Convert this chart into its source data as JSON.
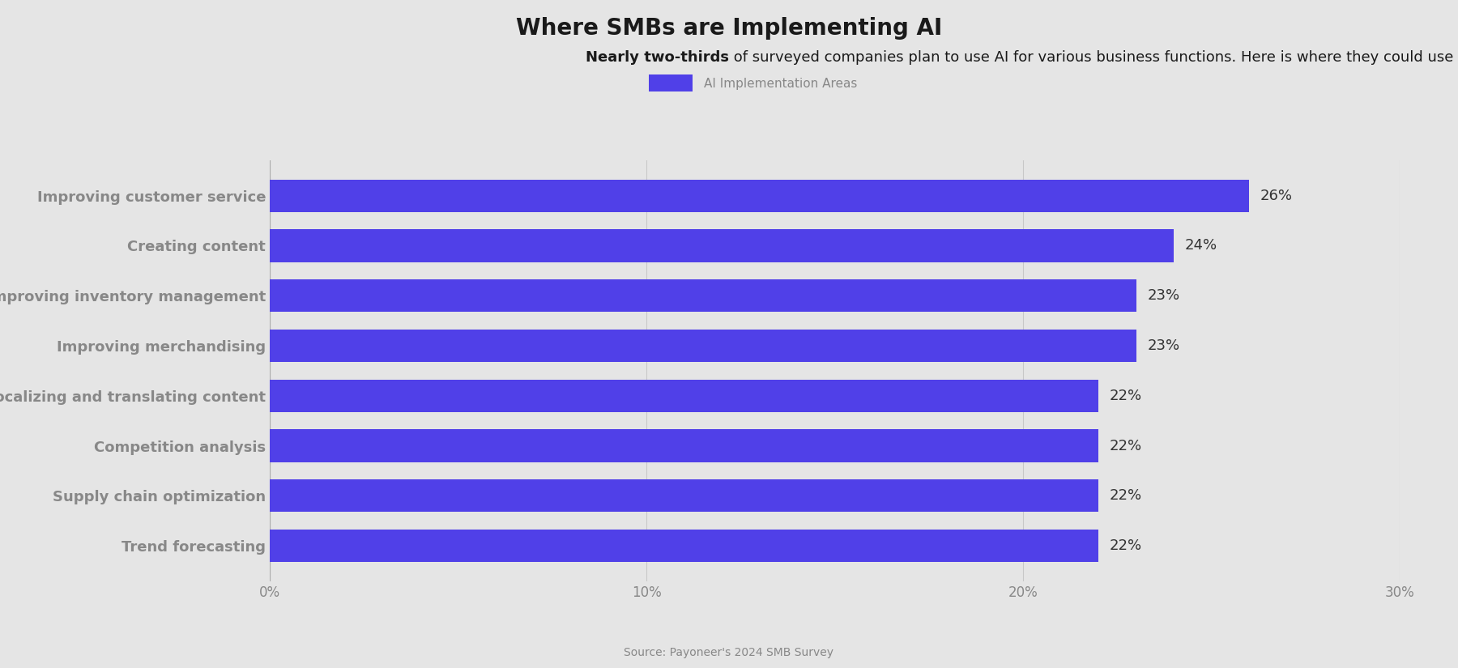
{
  "title": "Where SMBs are Implementing AI",
  "subtitle_normal": "of surveyed companies plan to use AI for various business functions. Here is where they could use expert help:",
  "subtitle_bold": "Nearly two-thirds",
  "legend_label": "AI Implementation Areas",
  "categories": [
    "Improving customer service",
    "Creating content",
    "Improving inventory management",
    "Improving merchandising",
    "Localizing and translating content",
    "Competition analysis",
    "Supply chain optimization",
    "Trend forecasting"
  ],
  "values": [
    26,
    24,
    23,
    23,
    22,
    22,
    22,
    22
  ],
  "bar_color": "#5040e8",
  "background_color": "#e5e5e5",
  "label_color": "#888888",
  "title_color": "#1a1a1a",
  "source_text": "Source: Payoneer's 2024 SMB Survey",
  "xlim": [
    0,
    30
  ],
  "xtick_labels": [
    "0%",
    "10%",
    "20%",
    "30%"
  ],
  "xtick_values": [
    0,
    10,
    20,
    30
  ],
  "bar_label_color": "#333333",
  "value_label_fontsize": 13,
  "category_fontsize": 13,
  "title_fontsize": 20,
  "subtitle_fontsize": 13,
  "source_fontsize": 10,
  "legend_fontsize": 11,
  "bar_height": 0.65
}
